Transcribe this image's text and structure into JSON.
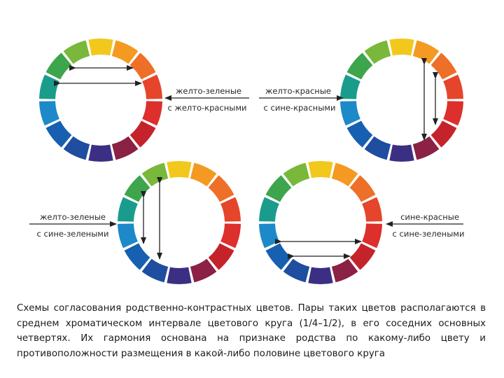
{
  "segment_colors": [
    "#f2c81c",
    "#f49a22",
    "#ee6f28",
    "#e5452a",
    "#dd2f2b",
    "#c5232b",
    "#8b2144",
    "#3b2f84",
    "#1f4da0",
    "#175fb0",
    "#1d89c9",
    "#1a9c8c",
    "#3da54b",
    "#79b83a"
  ],
  "labels": {
    "wheel1": [
      "желто-зеленые",
      "с желто-красными"
    ],
    "wheel2": [
      "желто-красные",
      "с сине-красными"
    ],
    "wheel3": [
      "желто-зеленые",
      "с сине-зелеными"
    ],
    "wheel4": [
      "сине-красные",
      "с сине-зелеными"
    ]
  },
  "caption": "Схемы согласования родственно-контрастных цветов. Пары таких цветов располагаются в среднем хроматическом интервале цветового круга (1/4–1/2), в его соседних основных четвертях. Их гармония основана на признаке родства по какому-либо цвету и противоположности размещения в какой-либо половине цветового круга"
}
